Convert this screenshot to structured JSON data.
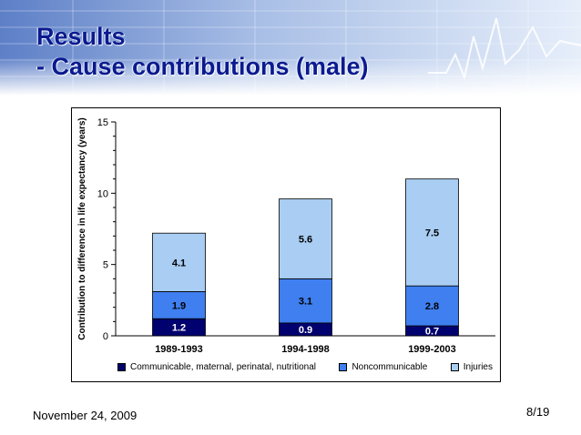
{
  "slide": {
    "title_line1": "Results",
    "title_line2": "- Cause contributions (male)",
    "date": "November 24, 2009",
    "page": "8/19"
  },
  "colors": {
    "communicable": "#00006e",
    "noncommunicable": "#3f7fef",
    "injuries": "#a9cdf3"
  },
  "chart_data": {
    "type": "bar",
    "stacked": true,
    "categories": [
      "1989-1993",
      "1994-1998",
      "1999-2003"
    ],
    "series": [
      {
        "name": "Communicable, maternal, perinatal, nutritional",
        "values": [
          1.2,
          0.9,
          0.7
        ]
      },
      {
        "name": "Noncommunicable",
        "values": [
          1.9,
          3.1,
          2.8
        ]
      },
      {
        "name": "Injuries",
        "values": [
          4.1,
          5.6,
          7.5
        ]
      }
    ],
    "ylabel": "Contribution to difference in life expectancy (years)",
    "ylim": [
      0,
      15
    ],
    "yticks": [
      0,
      5,
      10,
      15
    ],
    "legend_position": "bottom",
    "grid": false
  }
}
